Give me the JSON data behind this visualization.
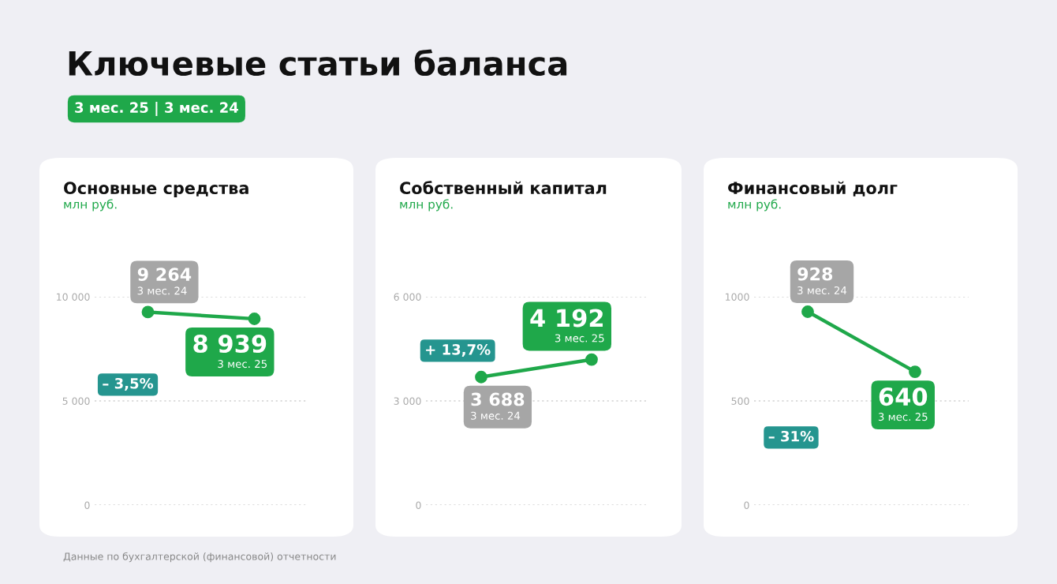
{
  "chart_data": [
    {
      "type": "line",
      "title": "Основные средства",
      "subtitle": "млн руб.",
      "categories": [
        "3 мес. 24",
        "3 мес. 25"
      ],
      "series": [
        {
          "color": "#1fa84a",
          "values": [
            9264,
            8939
          ]
        }
      ],
      "value_labels": [
        "9 264",
        "8 939"
      ],
      "ylim": [
        0,
        10000
      ],
      "yticks": [
        {
          "value": 0,
          "label": "0"
        },
        {
          "value": 5000,
          "label": "5 000"
        },
        {
          "value": 10000,
          "label": "10 000"
        }
      ],
      "grid": "y",
      "marker": "circle",
      "tick_labels": "y",
      "annotations": [
        "– 3,5%",
        "Ключевые статьи баланса",
        "3 мес. 25 | 3 мес. 24",
        "Данные по бухгалтерской (финансовой) отчетности"
      ]
    },
    {
      "type": "line",
      "title": "Собственный капитал",
      "subtitle": "млн руб.",
      "categories": [
        "3 мес. 24",
        "3 мес. 25"
      ],
      "series": [
        {
          "color": "#1fa84a",
          "values": [
            3688,
            4192
          ]
        }
      ],
      "value_labels": [
        "3 688",
        "4 192"
      ],
      "ylim": [
        0,
        6000
      ],
      "yticks": [
        {
          "value": 0,
          "label": "0"
        },
        {
          "value": 3000,
          "label": "3 000"
        },
        {
          "value": 6000,
          "label": "6 000"
        }
      ],
      "grid": "y",
      "marker": "circle",
      "tick_labels": "y",
      "annotations": [
        "+ 13,7%"
      ]
    },
    {
      "type": "line",
      "title": "Финансовый долг",
      "subtitle": "млн руб.",
      "categories": [
        "3 мес. 24",
        "3 мес. 25"
      ],
      "series": [
        {
          "color": "#1fa84a",
          "values": [
            928,
            640
          ]
        }
      ],
      "value_labels": [
        "928",
        "640"
      ],
      "ylim": [
        0,
        1000
      ],
      "yticks": [
        0,
        500,
        1000
      ],
      "grid": "y",
      "marker": "circle",
      "tick_labels": "y",
      "annotations": [
        "– 31%"
      ]
    }
  ]
}
